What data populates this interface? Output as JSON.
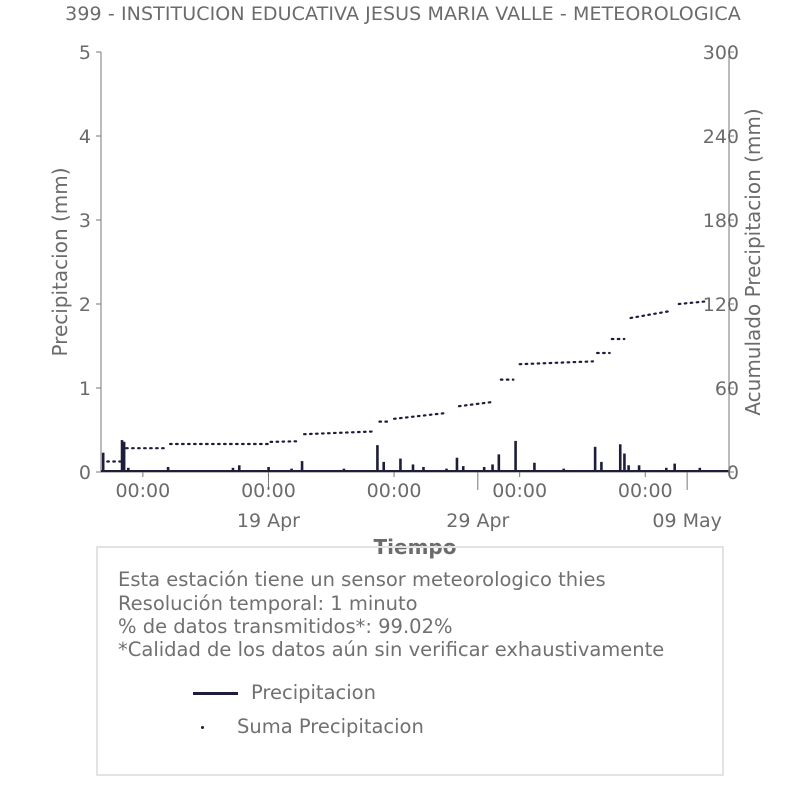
{
  "title": "399 - INSTITUCION EDUCATIVA JESUS MARIA VALLE - METEOROLOGICA",
  "info_box": {
    "lines": [
      "Esta estación tiene un sensor meteorologico thies",
      "Resolución temporal: 1 minuto",
      "% de datos transmitidos*: 99.02%",
      "*Calidad de los datos aún sin verificar exhaustivamente"
    ],
    "legend": [
      {
        "label": "Precipitacion",
        "marker": "line"
      },
      {
        "label": "Suma Precipitacion",
        "marker": "dot"
      }
    ]
  },
  "colors": {
    "series": "#1e1e3c",
    "text": "#6b6b6b",
    "axis": "#555555"
  },
  "chart_data": {
    "type": "bar",
    "title": "399 - INSTITUCION EDUCATIVA JESUS MARIA VALLE - METEOROLOGICA",
    "xlabel": "Tiempo",
    "ylabel": "Precipitacion (mm)",
    "y2label": "Acumulado Precipitacion (mm)",
    "ylim": [
      0,
      5
    ],
    "y2lim": [
      0,
      300
    ],
    "yticks": [
      "0",
      "1",
      "2",
      "3",
      "4",
      "5"
    ],
    "y2ticks": [
      "0",
      "60",
      "120",
      "180",
      "240",
      "300"
    ],
    "xlim_days": [
      0,
      30
    ],
    "xticks_minor": [
      {
        "day": 2,
        "label": "00:00"
      },
      {
        "day": 8,
        "label": "00:00"
      },
      {
        "day": 14,
        "label": "00:00"
      },
      {
        "day": 20,
        "label": "00:00"
      },
      {
        "day": 26,
        "label": "00:00"
      }
    ],
    "xticks_major": [
      {
        "day": 8,
        "label": "19 Apr"
      },
      {
        "day": 18,
        "label": "29 Apr"
      },
      {
        "day": 28,
        "label": "09 May"
      }
    ],
    "legend_placement": "box below chart",
    "grid": false,
    "series": [
      {
        "name": "Precipitacion",
        "style": "bars",
        "x": [
          0.1,
          1.0,
          1.1,
          1.3,
          3.2,
          6.3,
          6.6,
          8.0,
          9.1,
          9.6,
          11.6,
          13.2,
          13.5,
          14.3,
          14.9,
          15.4,
          16.5,
          17.0,
          17.3,
          18.3,
          18.7,
          19.0,
          19.8,
          20.7,
          22.1,
          23.6,
          23.9,
          24.8,
          25.0,
          25.2,
          25.7,
          27.0,
          27.4,
          28.6
        ],
        "values": [
          0.23,
          0.38,
          0.36,
          0.05,
          0.06,
          0.05,
          0.08,
          0.06,
          0.04,
          0.13,
          0.04,
          0.32,
          0.12,
          0.16,
          0.09,
          0.06,
          0.04,
          0.17,
          0.07,
          0.06,
          0.09,
          0.21,
          0.37,
          0.11,
          0.04,
          0.3,
          0.12,
          0.33,
          0.22,
          0.08,
          0.08,
          0.05,
          0.1,
          0.05
        ]
      },
      {
        "name": "Suma Precipitacion",
        "style": "dotted",
        "segments": [
          {
            "x": [
              0.3,
              1.0
            ],
            "y": [
              7.5,
              7.5
            ]
          },
          {
            "x": [
              1.2,
              3.1
            ],
            "y": [
              17,
              17
            ]
          },
          {
            "x": [
              3.3,
              8.0
            ],
            "y": [
              20,
              20
            ]
          },
          {
            "x": [
              8.1,
              9.5
            ],
            "y": [
              21.5,
              22
            ]
          },
          {
            "x": [
              9.7,
              13.1
            ],
            "y": [
              27,
              29
            ]
          },
          {
            "x": [
              13.3,
              13.7
            ],
            "y": [
              36,
              36
            ]
          },
          {
            "x": [
              14.0,
              16.4
            ],
            "y": [
              38,
              42
            ]
          },
          {
            "x": [
              17.1,
              18.7
            ],
            "y": [
              47,
              50
            ]
          },
          {
            "x": [
              19.1,
              19.7
            ],
            "y": [
              66,
              66
            ]
          },
          {
            "x": [
              20.0,
              23.5
            ],
            "y": [
              77,
              79
            ]
          },
          {
            "x": [
              23.7,
              24.3
            ],
            "y": [
              85,
              85
            ]
          },
          {
            "x": [
              24.4,
              25.0
            ],
            "y": [
              95,
              95
            ]
          },
          {
            "x": [
              25.3,
              27.2
            ],
            "y": [
              110,
              115
            ]
          },
          {
            "x": [
              27.6,
              29.0
            ],
            "y": [
              120,
              122
            ]
          }
        ]
      }
    ]
  }
}
